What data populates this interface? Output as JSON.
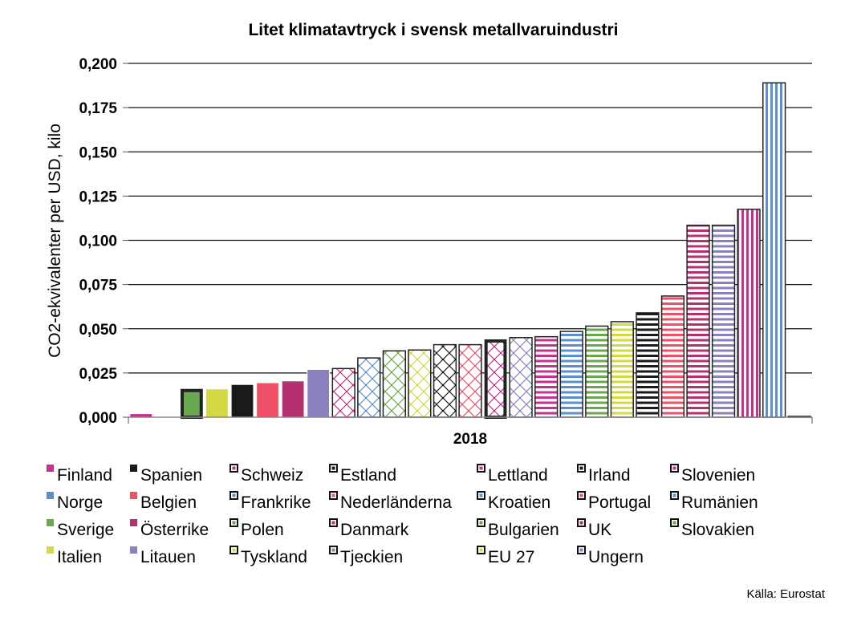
{
  "chart_data": {
    "type": "bar",
    "title": "Litet klimatavtryck i svensk metallvaruindustri",
    "xlabel": "2018",
    "ylabel": "CO2-ekvivalenter per USD, kilo",
    "ylim": [
      0,
      0.2
    ],
    "yticks": [
      "0,000",
      "0,025",
      "0,050",
      "0,075",
      "0,100",
      "0,125",
      "0,150",
      "0,175",
      "0,200"
    ],
    "grid": true,
    "legend_position": "bottom",
    "source": "Källa: Eurostat",
    "series": [
      {
        "name": "Finland",
        "value": 0.002,
        "color": "#c4328c",
        "pattern": "solid"
      },
      {
        "name": "Norge",
        "value": 0.0,
        "color": "#5b8fcf",
        "pattern": "solid"
      },
      {
        "name": "Sverige",
        "value": 0.016,
        "color": "#6aa84f",
        "pattern": "solid",
        "highlight": true
      },
      {
        "name": "Italien",
        "value": 0.016,
        "color": "#d4d943",
        "pattern": "solid"
      },
      {
        "name": "Spanien",
        "value": 0.0185,
        "color": "#1a1a1a",
        "pattern": "solid"
      },
      {
        "name": "Belgien",
        "value": 0.0195,
        "color": "#ef5065",
        "pattern": "solid"
      },
      {
        "name": "Österrike",
        "value": 0.0205,
        "color": "#b5306f",
        "pattern": "solid"
      },
      {
        "name": "Litauen",
        "value": 0.027,
        "color": "#8a82bf",
        "pattern": "solid"
      },
      {
        "name": "Schweiz",
        "value": 0.0275,
        "color": "#c4328c",
        "pattern": "cross"
      },
      {
        "name": "Frankrike",
        "value": 0.0335,
        "color": "#5b8fcf",
        "pattern": "cross"
      },
      {
        "name": "Polen",
        "value": 0.0375,
        "color": "#6aa84f",
        "pattern": "cross"
      },
      {
        "name": "Tyskland",
        "value": 0.038,
        "color": "#d4d943",
        "pattern": "cross"
      },
      {
        "name": "Estland",
        "value": 0.041,
        "color": "#1a1a1a",
        "pattern": "cross"
      },
      {
        "name": "Nederländerna",
        "value": 0.041,
        "color": "#ef5065",
        "pattern": "cross"
      },
      {
        "name": "Danmark",
        "value": 0.044,
        "color": "#c4328c",
        "pattern": "cross",
        "highlight": true
      },
      {
        "name": "Tjeckien",
        "value": 0.045,
        "color": "#8a82bf",
        "pattern": "cross"
      },
      {
        "name": "Lettland",
        "value": 0.0455,
        "color": "#c4328c",
        "pattern": "hstripe"
      },
      {
        "name": "Kroatien",
        "value": 0.0485,
        "color": "#5b8fcf",
        "pattern": "hstripe"
      },
      {
        "name": "Bulgarien",
        "value": 0.0515,
        "color": "#6aa84f",
        "pattern": "hstripe"
      },
      {
        "name": "EU 27",
        "value": 0.054,
        "color": "#d4d943",
        "pattern": "hstripe"
      },
      {
        "name": "Irland",
        "value": 0.059,
        "color": "#1a1a1a",
        "pattern": "hstripe"
      },
      {
        "name": "Portugal",
        "value": 0.0685,
        "color": "#ef5065",
        "pattern": "hstripe"
      },
      {
        "name": "UK",
        "value": 0.1085,
        "color": "#b5306f",
        "pattern": "hstripe"
      },
      {
        "name": "Ungern",
        "value": 0.1085,
        "color": "#8a82bf",
        "pattern": "hstripe"
      },
      {
        "name": "Slovenien",
        "value": 0.1175,
        "color": "#c4328c",
        "pattern": "vstripe"
      },
      {
        "name": "Rumänien",
        "value": 0.189,
        "color": "#5b8fcf",
        "pattern": "vstripe"
      },
      {
        "name": "Slovakien",
        "value": 0.0005,
        "color": "#6aa84f",
        "pattern": "vstripe"
      }
    ],
    "legend_order": [
      "Finland",
      "Spanien",
      "Schweiz",
      "Estland",
      "Lettland",
      "Irland",
      "Slovenien",
      "Norge",
      "Belgien",
      "Frankrike",
      "Nederländerna",
      "Kroatien",
      "Portugal",
      "Rumänien",
      "Sverige",
      "Österrike",
      "Polen",
      "Danmark",
      "Bulgarien",
      "UK",
      "Slovakien",
      "Italien",
      "Litauen",
      "Tyskland",
      "Tjeckien",
      "EU 27",
      "Ungern"
    ]
  }
}
